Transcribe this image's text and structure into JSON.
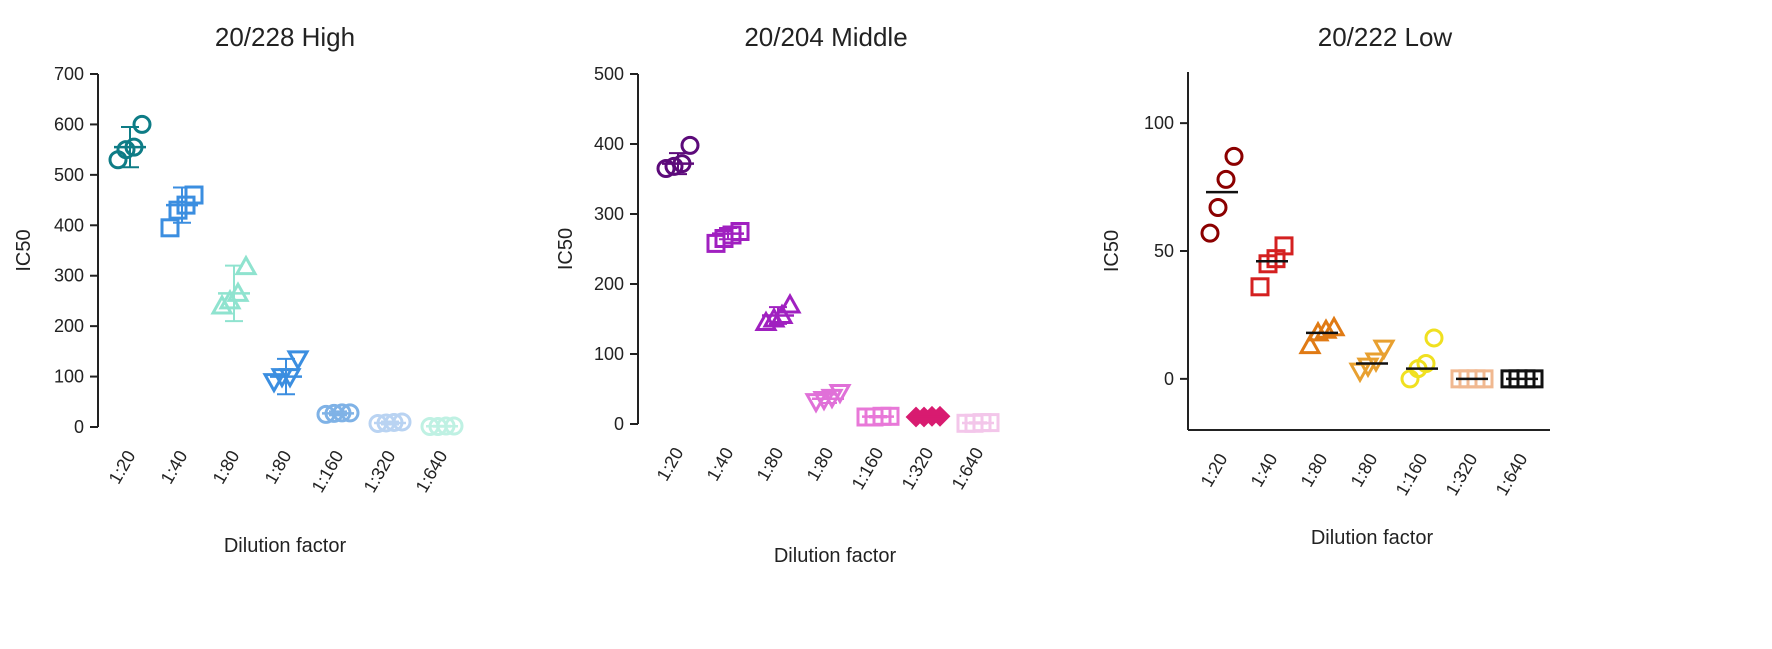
{
  "chart_data": [
    {
      "type": "scatter",
      "title": "20/228 High",
      "xlabel": "Dilution factor",
      "ylabel": "IC50",
      "ylim": [
        0,
        700
      ],
      "yticks": [
        0,
        100,
        200,
        300,
        400,
        500,
        600,
        700
      ],
      "categories": [
        "1:20",
        "1:40",
        "1:80",
        "1:80",
        "1:160",
        "1:320",
        "1:640"
      ],
      "groups": [
        {
          "marker": "circle",
          "color": "#0e7c86",
          "values": [
            530,
            550,
            555,
            600
          ],
          "mean": 555,
          "sd": 40
        },
        {
          "marker": "square",
          "color": "#3b8ee0",
          "values": [
            395,
            430,
            440,
            460
          ],
          "mean": 440,
          "sd": 35
        },
        {
          "marker": "triangle",
          "color": "#8fe3cf",
          "values": [
            240,
            250,
            265,
            318
          ],
          "mean": 265,
          "sd": 55
        },
        {
          "marker": "triangle-down",
          "color": "#3b8ee0",
          "values": [
            90,
            100,
            100,
            135
          ],
          "mean": 100,
          "sd": 35
        },
        {
          "marker": "circle",
          "color": "#7fb2e6",
          "values": [
            25,
            27,
            28,
            28
          ],
          "mean": 27,
          "sd": 4
        },
        {
          "marker": "circle",
          "color": "#b9d3f2",
          "values": [
            7,
            8,
            9,
            10
          ],
          "mean": 8,
          "sd": 3
        },
        {
          "marker": "circle",
          "color": "#bff1e3",
          "values": [
            1,
            1,
            2,
            2
          ],
          "mean": 1.5,
          "sd": 1
        }
      ]
    },
    {
      "type": "scatter",
      "title": "20/204 Middle",
      "xlabel": "Dilution factor",
      "ylabel": "IC50",
      "ylim": [
        0,
        500
      ],
      "yticks": [
        0,
        100,
        200,
        300,
        400,
        500
      ],
      "categories": [
        "1:20",
        "1:40",
        "1:80",
        "1:80",
        "1:160",
        "1:320",
        "1:640"
      ],
      "groups": [
        {
          "marker": "circle",
          "color": "#5c0a7a",
          "values": [
            365,
            368,
            372,
            398
          ],
          "mean": 372,
          "sd": 15
        },
        {
          "marker": "square",
          "color": "#a020c0",
          "values": [
            258,
            265,
            270,
            275
          ],
          "mean": 272,
          "sd": 8
        },
        {
          "marker": "triangle",
          "color": "#a020c0",
          "values": [
            145,
            150,
            155,
            170
          ],
          "mean": 155,
          "sd": 12
        },
        {
          "marker": "triangle-down",
          "color": "#e070d8",
          "values": [
            32,
            35,
            38,
            45
          ],
          "mean": 36,
          "sd": 6
        },
        {
          "marker": "square",
          "color": "#e878d8",
          "values": [
            10,
            10,
            11,
            11
          ],
          "mean": 10.5,
          "sd": 1
        },
        {
          "marker": "diamond",
          "color": "#d81b70",
          "values": [
            10,
            10,
            11,
            11
          ],
          "mean": 10.5,
          "sd": 1
        },
        {
          "marker": "square",
          "color": "#f3c6ea",
          "values": [
            1,
            1,
            2,
            2
          ],
          "mean": 1.5,
          "sd": 1
        }
      ]
    },
    {
      "type": "scatter",
      "title": "20/222 Low",
      "xlabel": "Dilution factor",
      "ylabel": "IC50",
      "ylim": [
        -20,
        120
      ],
      "yticks": [
        0,
        50,
        100
      ],
      "categories": [
        "1:20",
        "1:40",
        "1:80",
        "1:80",
        "1:160",
        "1:320",
        "1:640"
      ],
      "groups": [
        {
          "marker": "circle",
          "color": "#8b0000",
          "values": [
            57,
            67,
            78,
            87
          ],
          "mean": 73,
          "sd": 0
        },
        {
          "marker": "square",
          "color": "#d42020",
          "values": [
            36,
            45,
            47,
            52
          ],
          "mean": 46,
          "sd": 0
        },
        {
          "marker": "triangle",
          "color": "#e07a14",
          "values": [
            13,
            18,
            19,
            20
          ],
          "mean": 18,
          "sd": 0
        },
        {
          "marker": "triangle-down",
          "color": "#e8a030",
          "values": [
            3,
            5,
            7,
            12
          ],
          "mean": 6,
          "sd": 0
        },
        {
          "marker": "circle",
          "color": "#f0e020",
          "values": [
            0,
            4,
            6,
            16
          ],
          "mean": 4,
          "sd": 0
        },
        {
          "marker": "square",
          "color": "#f0b890",
          "values": [
            0,
            0,
            0,
            0
          ],
          "mean": 0,
          "sd": 0
        },
        {
          "marker": "square",
          "color": "#111111",
          "values": [
            0,
            0,
            0,
            0
          ],
          "mean": 0,
          "sd": 0
        }
      ]
    }
  ]
}
